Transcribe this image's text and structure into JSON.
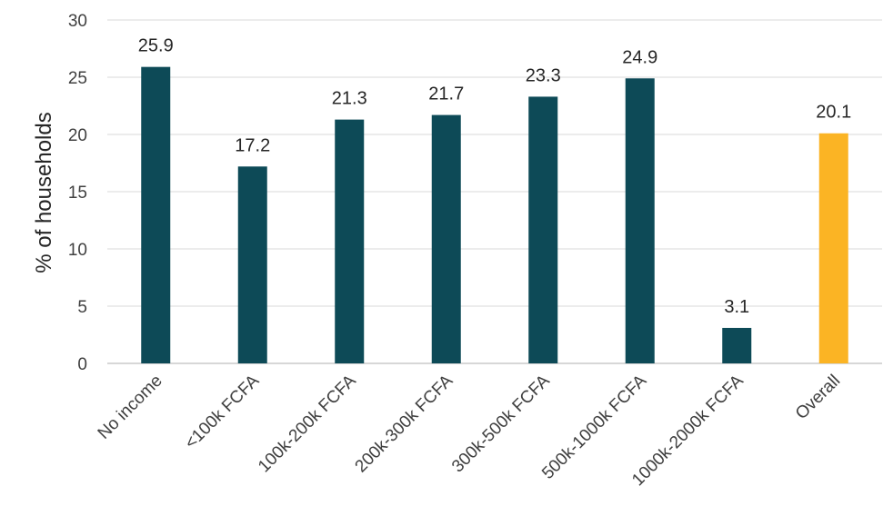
{
  "chart_data": {
    "type": "bar",
    "title": "",
    "xlabel": "",
    "ylabel": "% of households",
    "ylim": [
      0,
      30
    ],
    "yticks": [
      0,
      5,
      10,
      15,
      20,
      25,
      30
    ],
    "grid": true,
    "legend": "none",
    "categories": [
      "No income",
      "<100k FCFA",
      "100k-200k FCFA",
      "200k-300k FCFA",
      "300k-500k FCFA",
      "500k-1000k FCFA",
      "1000k-2000k FCFA",
      "Overall"
    ],
    "values": [
      25.9,
      17.2,
      21.3,
      21.7,
      23.3,
      24.9,
      3.1,
      20.1
    ],
    "data_labels": [
      "25.9",
      "17.2",
      "21.3",
      "21.7",
      "23.3",
      "24.9",
      "3.1",
      "20.1"
    ],
    "bar_colors": [
      "#0d4a57",
      "#0d4a57",
      "#0d4a57",
      "#0d4a57",
      "#0d4a57",
      "#0d4a57",
      "#0d4a57",
      "#fbb424"
    ]
  }
}
